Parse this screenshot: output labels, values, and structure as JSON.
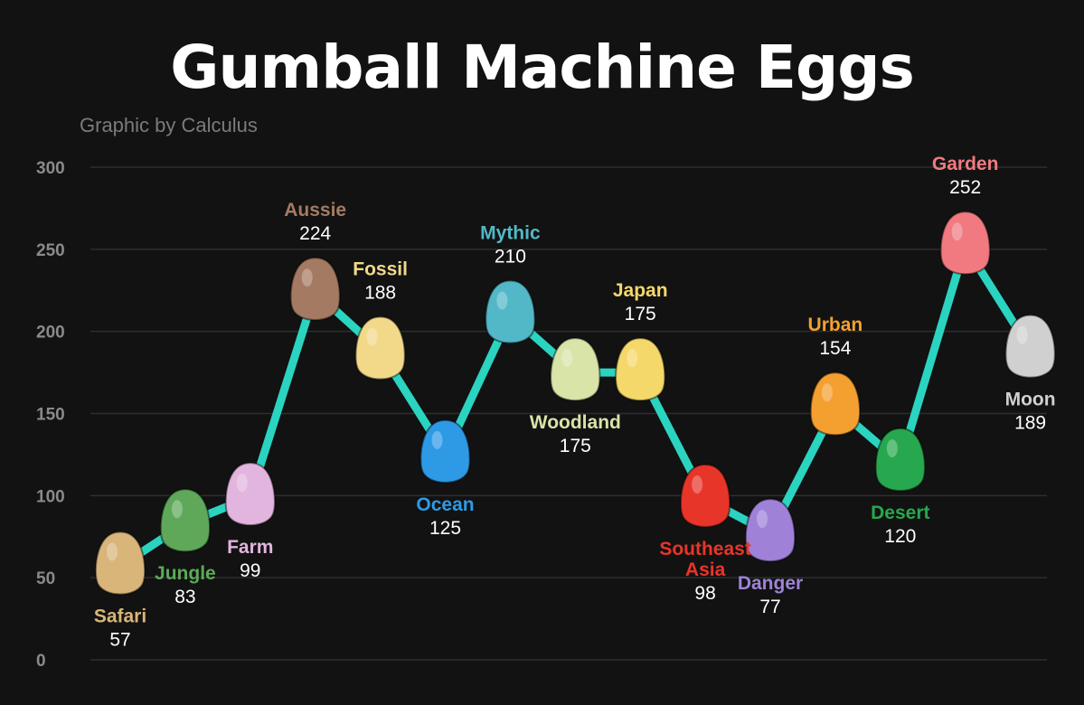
{
  "chart_data": {
    "type": "line",
    "title": "Gumball Machine Eggs",
    "subtitle": "Graphic by Calculus",
    "ylim": [
      0,
      300
    ],
    "yticks": [
      0,
      50,
      100,
      150,
      200,
      250,
      300
    ],
    "grid": true,
    "line_color": "#2ad4c0",
    "points": [
      {
        "name": "Safari",
        "value": 57,
        "color": "#d9b57a",
        "label_pos": "below"
      },
      {
        "name": "Jungle",
        "value": 83,
        "color": "#5fa85a",
        "label_pos": "below"
      },
      {
        "name": "Farm",
        "value": 99,
        "color": "#e2b5df",
        "label_pos": "below"
      },
      {
        "name": "Aussie",
        "value": 224,
        "color": "#a57a62",
        "label_pos": "above"
      },
      {
        "name": "Fossil",
        "value": 188,
        "color": "#f2d98a",
        "label_pos": "above"
      },
      {
        "name": "Ocean",
        "value": 125,
        "color": "#2e9ae6",
        "label_pos": "below"
      },
      {
        "name": "Mythic",
        "value": 210,
        "color": "#52b8c8",
        "label_pos": "above"
      },
      {
        "name": "Woodland",
        "value": 175,
        "color": "#d8e4a8",
        "label_pos": "below"
      },
      {
        "name": "Japan",
        "value": 175,
        "color": "#f5d86a",
        "label_pos": "above"
      },
      {
        "name": "Southeast Asia",
        "value": 98,
        "color": "#e8352a",
        "label_pos": "below",
        "name_lines": [
          "Southeast",
          "Asia"
        ]
      },
      {
        "name": "Danger",
        "value": 77,
        "color": "#9f82d8",
        "label_pos": "below"
      },
      {
        "name": "Urban",
        "value": 154,
        "color": "#f4a030",
        "label_pos": "above"
      },
      {
        "name": "Desert",
        "value": 120,
        "color": "#27a84e",
        "label_pos": "below"
      },
      {
        "name": "Garden",
        "value": 252,
        "color": "#f07a80",
        "label_pos": "above"
      },
      {
        "name": "Moon",
        "value": 189,
        "color": "#d0d0d0",
        "label_pos": "below"
      }
    ]
  }
}
